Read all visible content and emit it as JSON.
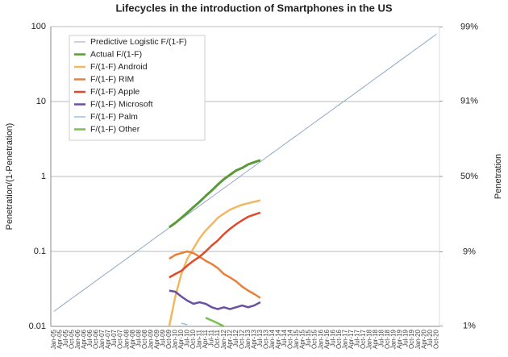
{
  "chart_data": {
    "type": "line",
    "title": "Lifecycles in the introduction of Smartphones in the US",
    "y_label": "Penetration/(1-Penetration)",
    "y2_label": "Penetration",
    "yscale": "log",
    "ylim": [
      0.01,
      100
    ],
    "yticks": [
      0.01,
      0.1,
      1,
      10,
      100
    ],
    "y2scale": "logit-percent",
    "y2lim": [
      1,
      99
    ],
    "y2ticks": [
      {
        "value": 1,
        "label": "1%"
      },
      {
        "value": 9,
        "label": "9%"
      },
      {
        "value": 50,
        "label": "50%"
      },
      {
        "value": 91,
        "label": "91%"
      },
      {
        "value": 99,
        "label": "99%"
      }
    ],
    "grid": true,
    "legend": "upper left",
    "categories": [
      "Jan-05",
      "Apr-05",
      "Jul-05",
      "Oct-05",
      "Jan-06",
      "Apr-06",
      "Jul-06",
      "Oct-06",
      "Jan-07",
      "Apr-07",
      "Jul-07",
      "Oct-07",
      "Jan-08",
      "Apr-08",
      "Jul-08",
      "Oct-08",
      "Jan-09",
      "Apr-09",
      "Jul-09",
      "Oct-09",
      "Jan-10",
      "Apr-10",
      "Jul-10",
      "Oct-10",
      "Jan-11",
      "Apr-11",
      "Jul-11",
      "Oct-11",
      "Jan-12",
      "Apr-12",
      "Jul-12",
      "Oct-12",
      "Jan-13",
      "Apr-13",
      "Jul-13",
      "Oct-13",
      "Jan-14",
      "Apr-14",
      "Jul-14",
      "Oct-14",
      "Jan-15",
      "Apr-15",
      "Jul-15",
      "Oct-15",
      "Jan-16",
      "Apr-16",
      "Jul-16",
      "Oct-16",
      "Jan-17",
      "Apr-17",
      "Jul-17",
      "Oct-17",
      "Jan-18",
      "Apr-18",
      "Jul-18",
      "Oct-18",
      "Jan-19",
      "Apr-19",
      "Jul-19",
      "Oct-19",
      "Jan-20",
      "Apr-20",
      "Jul-20",
      "Oct-20"
    ],
    "series": [
      {
        "name": "Predictive Logistic F/(1-F)",
        "color": "#8fa8c8",
        "width": 1,
        "values": [
          0.0158,
          0.0181,
          0.0208,
          0.0238,
          0.0272,
          0.0311,
          0.0357,
          0.0408,
          0.0467,
          0.0535,
          0.0612,
          0.0701,
          0.0802,
          0.0918,
          0.105,
          0.12,
          0.138,
          0.158,
          0.181,
          0.207,
          0.237,
          0.271,
          0.31,
          0.355,
          0.406,
          0.465,
          0.532,
          0.609,
          0.698,
          0.798,
          0.914,
          1.05,
          1.2,
          1.37,
          1.57,
          1.8,
          2.06,
          2.35,
          2.7,
          3.09,
          3.53,
          4.04,
          4.63,
          5.3,
          6.07,
          6.94,
          7.95,
          9.1,
          10.4,
          11.9,
          13.6,
          15.6,
          17.9,
          20.5,
          23.4,
          26.8,
          30.7,
          35.2,
          40.2,
          46.1,
          52.7,
          60.3,
          69.1,
          79.1
        ]
      },
      {
        "name": "Actual F/(1-F)",
        "color": "#5a9a3a",
        "width": 3,
        "values": [
          null,
          null,
          null,
          null,
          null,
          null,
          null,
          null,
          null,
          null,
          null,
          null,
          null,
          null,
          null,
          null,
          null,
          null,
          null,
          0.21,
          0.24,
          0.28,
          0.33,
          0.39,
          0.46,
          0.55,
          0.65,
          0.78,
          0.92,
          1.05,
          1.2,
          1.3,
          1.45,
          1.55,
          1.65,
          null,
          null,
          null,
          null,
          null,
          null,
          null,
          null,
          null,
          null,
          null,
          null,
          null,
          null,
          null,
          null,
          null,
          null,
          null,
          null,
          null,
          null,
          null,
          null,
          null,
          null,
          null,
          null,
          null
        ]
      },
      {
        "name": "F/(1-F) Android",
        "color": "#f0b860",
        "width": 2.5,
        "values": [
          null,
          null,
          null,
          null,
          null,
          null,
          null,
          null,
          null,
          null,
          null,
          null,
          null,
          null,
          null,
          null,
          null,
          null,
          null,
          0.01,
          0.025,
          0.05,
          0.08,
          0.11,
          0.15,
          0.19,
          0.23,
          0.28,
          0.32,
          0.36,
          0.39,
          0.42,
          0.44,
          0.46,
          0.48,
          null,
          null,
          null,
          null,
          null,
          null,
          null,
          null,
          null,
          null,
          null,
          null,
          null,
          null,
          null,
          null,
          null,
          null,
          null,
          null,
          null,
          null,
          null,
          null,
          null,
          null,
          null,
          null,
          null
        ]
      },
      {
        "name": "F/(1-F) RIM",
        "color": "#e8803a",
        "width": 2.5,
        "values": [
          null,
          null,
          null,
          null,
          null,
          null,
          null,
          null,
          null,
          null,
          null,
          null,
          null,
          null,
          null,
          null,
          null,
          null,
          null,
          0.08,
          0.09,
          0.095,
          0.1,
          0.095,
          0.085,
          0.075,
          0.068,
          0.06,
          0.05,
          0.045,
          0.04,
          0.034,
          0.03,
          0.027,
          0.024,
          null,
          null,
          null,
          null,
          null,
          null,
          null,
          null,
          null,
          null,
          null,
          null,
          null,
          null,
          null,
          null,
          null,
          null,
          null,
          null,
          null,
          null,
          null,
          null,
          null,
          null,
          null,
          null,
          null
        ]
      },
      {
        "name": "F/(1-F) Apple",
        "color": "#e04a2a",
        "width": 2.5,
        "values": [
          null,
          null,
          null,
          null,
          null,
          null,
          null,
          null,
          null,
          null,
          null,
          null,
          null,
          null,
          null,
          null,
          null,
          null,
          null,
          0.045,
          0.05,
          0.055,
          0.065,
          0.075,
          0.085,
          0.1,
          0.12,
          0.14,
          0.17,
          0.2,
          0.23,
          0.26,
          0.29,
          0.31,
          0.33,
          null,
          null,
          null,
          null,
          null,
          null,
          null,
          null,
          null,
          null,
          null,
          null,
          null,
          null,
          null,
          null,
          null,
          null,
          null,
          null,
          null,
          null,
          null,
          null,
          null,
          null,
          null,
          null,
          null
        ]
      },
      {
        "name": "F/(1-F) Microsoft",
        "color": "#6a50a0",
        "width": 2.5,
        "values": [
          null,
          null,
          null,
          null,
          null,
          null,
          null,
          null,
          null,
          null,
          null,
          null,
          null,
          null,
          null,
          null,
          null,
          null,
          null,
          0.03,
          0.029,
          0.025,
          0.022,
          0.02,
          0.021,
          0.02,
          0.018,
          0.017,
          0.018,
          0.017,
          0.018,
          0.019,
          0.018,
          0.019,
          0.021,
          null,
          null,
          null,
          null,
          null,
          null,
          null,
          null,
          null,
          null,
          null,
          null,
          null,
          null,
          null,
          null,
          null,
          null,
          null,
          null,
          null,
          null,
          null,
          null,
          null,
          null,
          null,
          null,
          null
        ]
      },
      {
        "name": "F/(1-F) Palm",
        "color": "#9ac0e0",
        "width": 1.5,
        "values": [
          null,
          null,
          null,
          null,
          null,
          null,
          null,
          null,
          null,
          null,
          null,
          null,
          null,
          null,
          null,
          null,
          null,
          null,
          null,
          null,
          null,
          0.011,
          0.0105,
          null,
          null,
          null,
          null,
          null,
          null,
          null,
          null,
          null,
          null,
          null,
          null,
          null,
          null,
          null,
          null,
          null,
          null,
          null,
          null,
          null,
          null,
          null,
          null,
          null,
          null,
          null,
          null,
          null,
          null,
          null,
          null,
          null,
          null,
          null,
          null,
          null,
          null,
          null,
          null,
          null
        ]
      },
      {
        "name": "F/(1-F) Other",
        "color": "#78c050",
        "width": 2.5,
        "values": [
          null,
          null,
          null,
          null,
          null,
          null,
          null,
          null,
          null,
          null,
          null,
          null,
          null,
          null,
          null,
          null,
          null,
          null,
          null,
          null,
          null,
          null,
          null,
          null,
          null,
          0.013,
          0.012,
          0.011,
          0.01,
          null,
          null,
          null,
          null,
          null,
          null,
          null,
          null,
          null,
          null,
          null,
          null,
          null,
          null,
          null,
          null,
          null,
          null,
          null,
          null,
          null,
          null,
          null,
          null,
          null,
          null,
          null,
          null,
          null,
          null,
          null,
          null,
          null,
          null,
          null
        ]
      }
    ]
  }
}
